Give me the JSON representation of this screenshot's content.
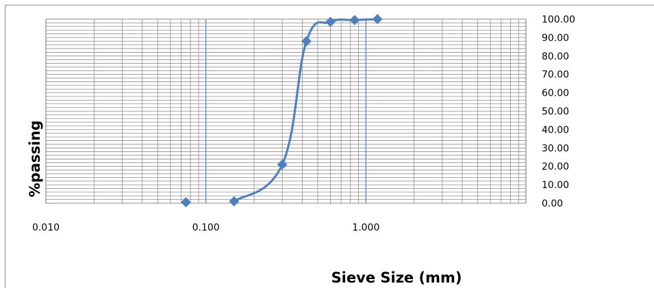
{
  "chart_data": {
    "type": "scatter",
    "title": "",
    "xlabel": "Sieve Size (mm)",
    "ylabel": "%passing",
    "x_scale": "log",
    "xlim": [
      0.01,
      10
    ],
    "ylim": [
      0,
      100
    ],
    "x_ticks": [
      "0.010",
      "0.100",
      "1.000"
    ],
    "y_ticks": [
      "0.00",
      "10.00",
      "20.00",
      "30.00",
      "40.00",
      "50.00",
      "60.00",
      "70.00",
      "80.00",
      "90.00",
      "100.00"
    ],
    "y_axis_side": "right",
    "grid": true,
    "legend": "none",
    "series": [
      {
        "color": "#4f81bd",
        "marker": "diamond",
        "line": "smooth",
        "x": [
          0.075,
          0.15,
          0.3,
          0.425,
          0.6,
          0.85,
          1.18
        ],
        "y": [
          0.5,
          1,
          21,
          88,
          98.5,
          99.5,
          100
        ]
      }
    ]
  }
}
